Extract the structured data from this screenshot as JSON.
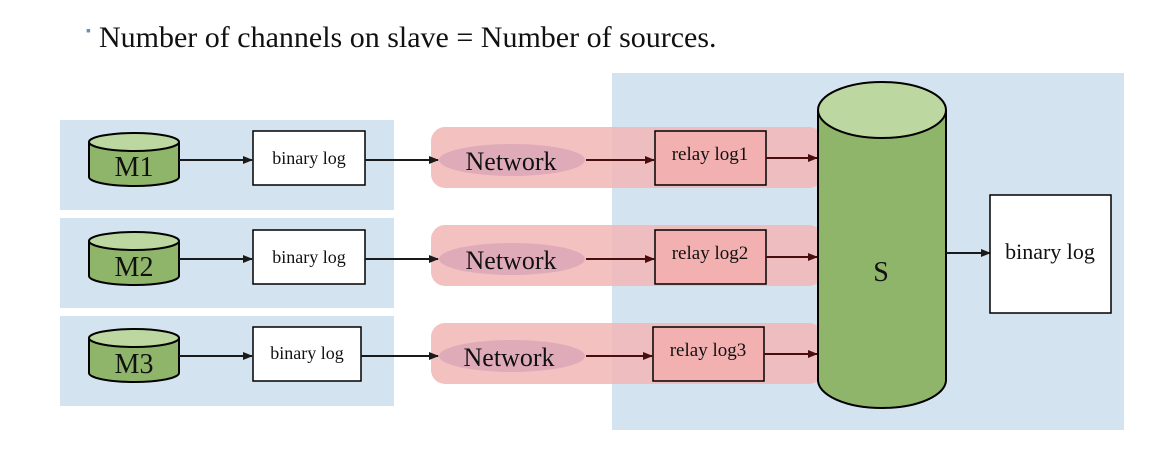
{
  "heading": {
    "bullet": "▪",
    "text": "Number of channels on slave = Number of sources."
  },
  "masters": [
    {
      "label": "M1",
      "binlog": "binary log",
      "network": "Network",
      "relay": "relay log1"
    },
    {
      "label": "M2",
      "binlog": "binary log",
      "network": "Network",
      "relay": "relay log2"
    },
    {
      "label": "M3",
      "binlog": "binary log",
      "network": "Network",
      "relay": "relay log3"
    }
  ],
  "slave": {
    "label": "S",
    "binlog": "binary log"
  },
  "colors": {
    "panel": "#d3e3f0",
    "network_band": "#f2b6b6",
    "network_oval": "#d9a3b6",
    "relay_box": "#f2b0b0",
    "cylinder_body": "#8fb56a",
    "cylinder_top": "#bcd7a0",
    "arrow": "#1a1a1a",
    "arrow_dark": "#4a0d0d"
  }
}
